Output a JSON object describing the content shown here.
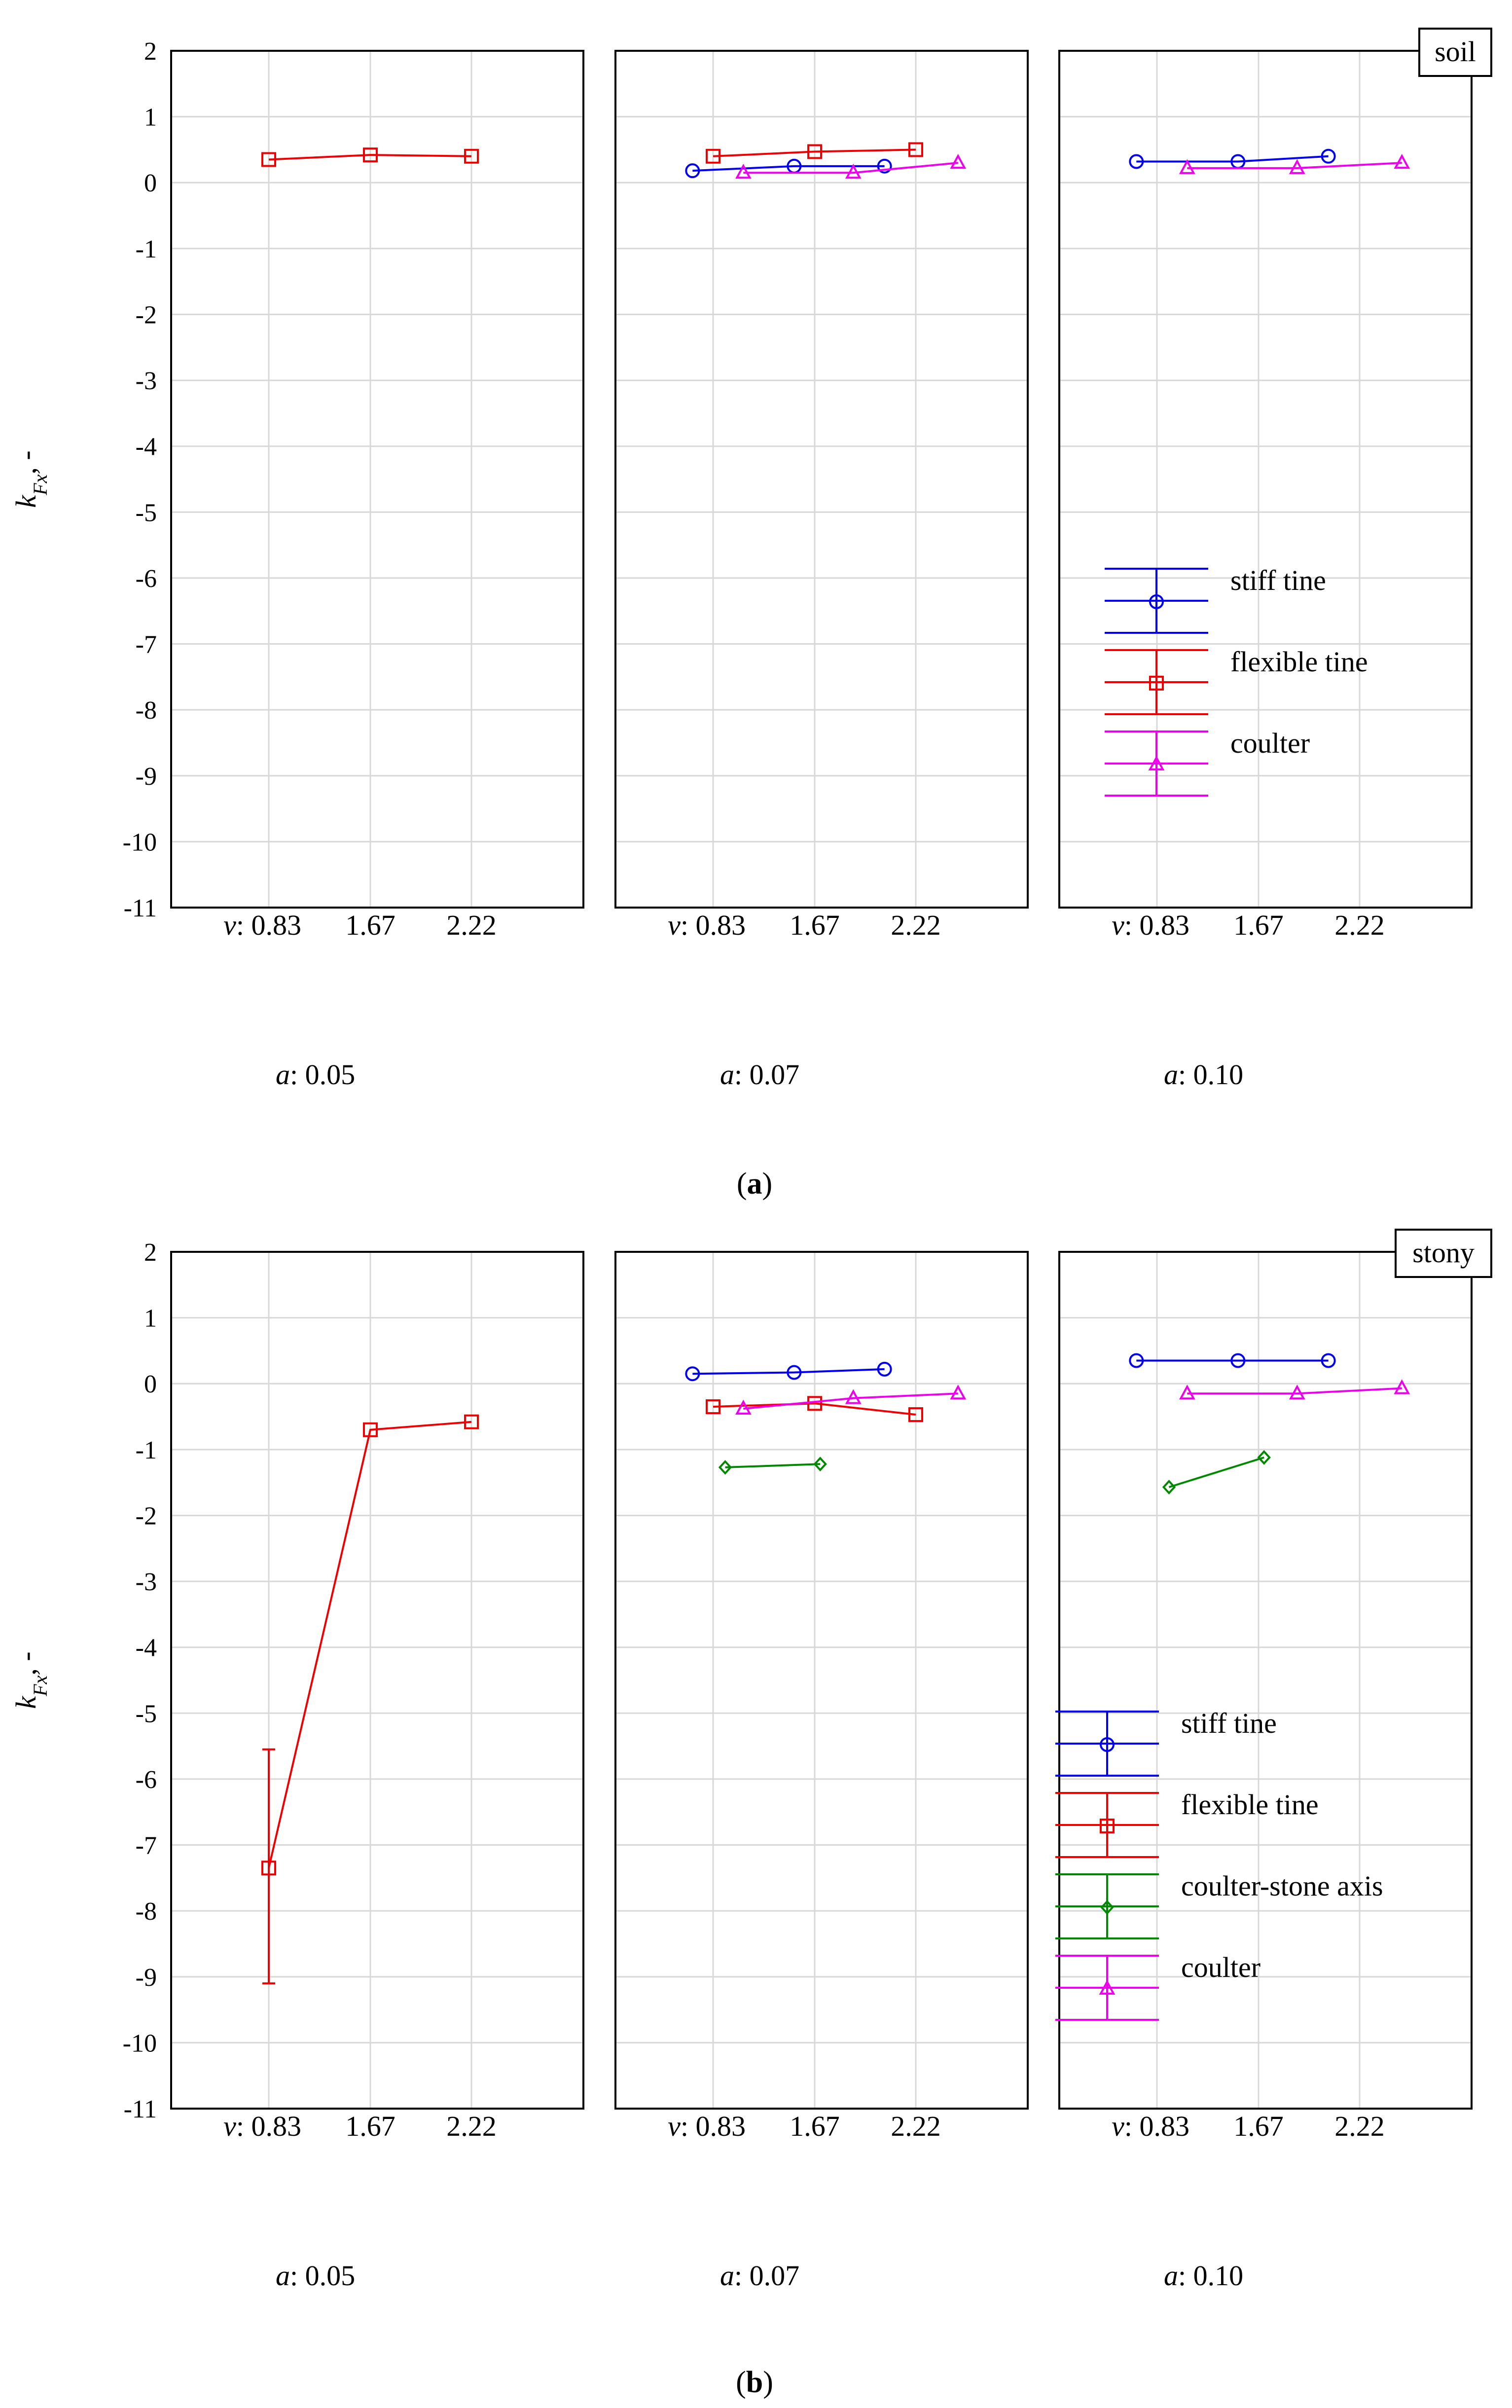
{
  "figure": {
    "subfig_labels": [
      "a",
      "b"
    ]
  },
  "colors": {
    "stiff_tine": "#0000ee",
    "flexible_tine": "#ee0000",
    "coulter_stone_axis": "#008800",
    "coulter": "#ee00ee",
    "grid": "#d8d8d8",
    "frame": "#000000"
  },
  "chart_data": [
    {
      "type": "line",
      "subfigure": "a",
      "condition_label": "soil",
      "ylabel": "k",
      "ylabel_sub": "Fx",
      "ylabel_suffix": ", -",
      "ylim": [
        -11,
        2
      ],
      "yticks": [
        "2",
        "1",
        "0",
        "-1",
        "-2",
        "-3",
        "-4",
        "-5",
        "-6",
        "-7",
        "-8",
        "-9",
        "-10",
        "-11"
      ],
      "x_prefix": "v",
      "categories": [
        "0.83",
        "1.67",
        "2.22"
      ],
      "panel_prefix": "a",
      "panels": [
        {
          "a": "0.05",
          "series": [
            {
              "name": "flexible tine",
              "points": [
                {
                  "v": 0.83,
                  "y": 0.35
                },
                {
                  "v": 1.67,
                  "y": 0.42
                },
                {
                  "v": 2.22,
                  "y": 0.4
                }
              ]
            }
          ]
        },
        {
          "a": "0.07",
          "series": [
            {
              "name": "stiff tine",
              "points": [
                {
                  "v": 0.66,
                  "y": 0.18
                },
                {
                  "v": 1.5,
                  "y": 0.25
                },
                {
                  "v": 2.05,
                  "y": 0.25
                }
              ]
            },
            {
              "name": "flexible tine",
              "points": [
                {
                  "v": 0.83,
                  "y": 0.4
                },
                {
                  "v": 1.67,
                  "y": 0.47
                },
                {
                  "v": 2.22,
                  "y": 0.5
                }
              ]
            },
            {
              "name": "coulter",
              "points": [
                {
                  "v": 1.08,
                  "y": 0.15
                },
                {
                  "v": 1.88,
                  "y": 0.15
                },
                {
                  "v": 2.45,
                  "y": 0.3
                }
              ]
            }
          ]
        },
        {
          "a": "0.10",
          "series": [
            {
              "name": "stiff tine",
              "points": [
                {
                  "v": 0.66,
                  "y": 0.32
                },
                {
                  "v": 1.5,
                  "y": 0.32
                },
                {
                  "v": 2.05,
                  "y": 0.4
                }
              ]
            },
            {
              "name": "coulter",
              "points": [
                {
                  "v": 1.08,
                  "y": 0.22
                },
                {
                  "v": 1.88,
                  "y": 0.22
                },
                {
                  "v": 2.45,
                  "y": 0.3
                }
              ]
            }
          ]
        }
      ],
      "legend": {
        "panel": 2,
        "entries": [
          "stiff tine",
          "flexible tine",
          "coulter"
        ]
      }
    },
    {
      "type": "line",
      "subfigure": "b",
      "condition_label": "stony",
      "ylabel": "k",
      "ylabel_sub": "Fx",
      "ylabel_suffix": ", -",
      "ylim": [
        -11,
        2
      ],
      "yticks": [
        "2",
        "1",
        "0",
        "-1",
        "-2",
        "-3",
        "-4",
        "-5",
        "-6",
        "-7",
        "-8",
        "-9",
        "-10",
        "-11"
      ],
      "x_prefix": "v",
      "categories": [
        "0.83",
        "1.67",
        "2.22"
      ],
      "panel_prefix": "a",
      "panels": [
        {
          "a": "0.05",
          "series": [
            {
              "name": "flexible tine",
              "points": [
                {
                  "v": 0.83,
                  "y": -7.35,
                  "lo": -9.1,
                  "hi": -5.55
                },
                {
                  "v": 1.67,
                  "y": -0.7
                },
                {
                  "v": 2.22,
                  "y": -0.58
                }
              ]
            }
          ]
        },
        {
          "a": "0.07",
          "series": [
            {
              "name": "stiff tine",
              "points": [
                {
                  "v": 0.66,
                  "y": 0.15
                },
                {
                  "v": 1.5,
                  "y": 0.17
                },
                {
                  "v": 2.05,
                  "y": 0.22
                }
              ]
            },
            {
              "name": "flexible tine",
              "points": [
                {
                  "v": 0.83,
                  "y": -0.35
                },
                {
                  "v": 1.67,
                  "y": -0.3
                },
                {
                  "v": 2.22,
                  "y": -0.47
                }
              ]
            },
            {
              "name": "coulter-stone axis",
              "points": [
                {
                  "v": 0.93,
                  "y": -1.27
                },
                {
                  "v": 1.7,
                  "y": -1.22
                }
              ]
            },
            {
              "name": "coulter",
              "points": [
                {
                  "v": 1.08,
                  "y": -0.38
                },
                {
                  "v": 1.88,
                  "y": -0.22
                },
                {
                  "v": 2.45,
                  "y": -0.15
                }
              ]
            }
          ]
        },
        {
          "a": "0.10",
          "series": [
            {
              "name": "stiff tine",
              "points": [
                {
                  "v": 0.66,
                  "y": 0.35
                },
                {
                  "v": 1.5,
                  "y": 0.35
                },
                {
                  "v": 2.05,
                  "y": 0.35
                }
              ]
            },
            {
              "name": "coulter-stone axis",
              "points": [
                {
                  "v": 0.93,
                  "y": -1.57
                },
                {
                  "v": 1.7,
                  "y": -1.12
                }
              ]
            },
            {
              "name": "coulter",
              "points": [
                {
                  "v": 1.08,
                  "y": -0.15
                },
                {
                  "v": 1.88,
                  "y": -0.15
                },
                {
                  "v": 2.45,
                  "y": -0.07
                }
              ]
            }
          ]
        }
      ],
      "legend": {
        "panel": 2,
        "entries": [
          "stiff tine",
          "flexible tine",
          "coulter-stone axis",
          "coulter"
        ]
      }
    }
  ]
}
